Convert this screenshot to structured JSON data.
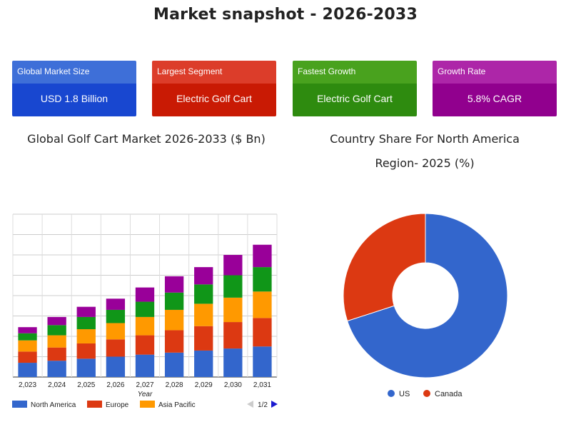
{
  "page": {
    "title": "Market snapshot - 2026-2033"
  },
  "cards": [
    {
      "label": "Global Market Size",
      "value": "USD 1.8 Billion"
    },
    {
      "label": "Largest Segment",
      "value": "Electric Golf Cart"
    },
    {
      "label": "Fastest Growth",
      "value": "Electric Golf Cart"
    },
    {
      "label": "Growth Rate",
      "value": "5.8% CAGR"
    }
  ],
  "chart_data": [
    {
      "type": "bar",
      "stacked": true,
      "title": "Global Golf Cart Market 2026-2033 ($ Bn)",
      "xlabel": "Year",
      "ylabel": "",
      "categories": [
        "2,023",
        "2,024",
        "2,025",
        "2,026",
        "2,027",
        "2,028",
        "2,029",
        "2,030",
        "2,031"
      ],
      "ylim": [
        0,
        8
      ],
      "grid": true,
      "legend_position": "bottom",
      "pager": "1/2",
      "series": [
        {
          "name": "North America",
          "color": "#3366cc",
          "values": [
            0.7,
            0.8,
            0.9,
            1.0,
            1.1,
            1.2,
            1.3,
            1.4,
            1.5
          ]
        },
        {
          "name": "Europe",
          "color": "#dc3912",
          "values": [
            0.55,
            0.65,
            0.75,
            0.85,
            0.95,
            1.1,
            1.2,
            1.3,
            1.4
          ]
        },
        {
          "name": "Asia Pacific",
          "color": "#ff9900",
          "values": [
            0.55,
            0.6,
            0.7,
            0.8,
            0.9,
            1.0,
            1.1,
            1.2,
            1.3
          ]
        },
        {
          "name": "",
          "color": "#109618",
          "values": [
            0.35,
            0.5,
            0.6,
            0.65,
            0.75,
            0.85,
            0.95,
            1.1,
            1.2
          ]
        },
        {
          "name": "",
          "color": "#990099",
          "values": [
            0.3,
            0.4,
            0.5,
            0.55,
            0.7,
            0.8,
            0.85,
            1.0,
            1.1
          ]
        }
      ]
    },
    {
      "type": "pie",
      "donut": true,
      "title": "Country Share For North America Region- 2025 (%)",
      "legend_position": "bottom",
      "slices": [
        {
          "name": "US",
          "value": 70,
          "color": "#3366cc"
        },
        {
          "name": "Canada",
          "value": 30,
          "color": "#dc3912"
        }
      ]
    }
  ]
}
